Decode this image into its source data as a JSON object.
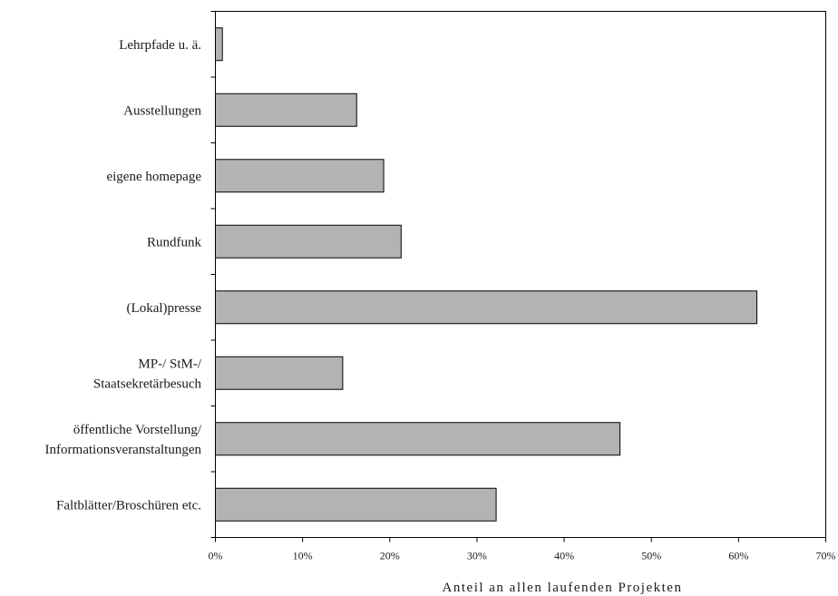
{
  "chart_data": {
    "type": "bar",
    "orientation": "horizontal",
    "categories": [
      "Lehrpfade u. ä.",
      "Ausstellungen",
      "eigene homepage",
      "Rundfunk",
      "(Lokal)presse",
      "MP-/ StM-/ Staatsekretärbesuch",
      "öffentliche Vorstellung/ Informationsveranstaltungen",
      "Faltblätter/Broschüren etc."
    ],
    "category_lines": [
      [
        "Lehrpfade u. ä."
      ],
      [
        "Ausstellungen"
      ],
      [
        "eigene homepage"
      ],
      [
        "Rundfunk"
      ],
      [
        "(Lokal)presse"
      ],
      [
        "MP-/ StM-/",
        "Staatsekretärbesuch"
      ],
      [
        "öffentliche Vorstellung/",
        "Informationsveranstaltungen"
      ],
      [
        "Faltblätter/Broschüren etc."
      ]
    ],
    "values": [
      0.8,
      16.2,
      19.3,
      21.3,
      62.1,
      14.6,
      46.4,
      32.2
    ],
    "xlim": [
      0,
      70
    ],
    "xticks": [
      0,
      10,
      20,
      30,
      40,
      50,
      60,
      70
    ],
    "xtick_labels": [
      "0%",
      "10%",
      "20%",
      "30%",
      "40%",
      "50%",
      "60%",
      "70%"
    ],
    "xlabel": "Anteil an allen laufenden Projekten",
    "ylabel": "",
    "title": "",
    "grid": false,
    "bar_color": "#b3b3b3",
    "bar_edge_color": "#000000"
  }
}
